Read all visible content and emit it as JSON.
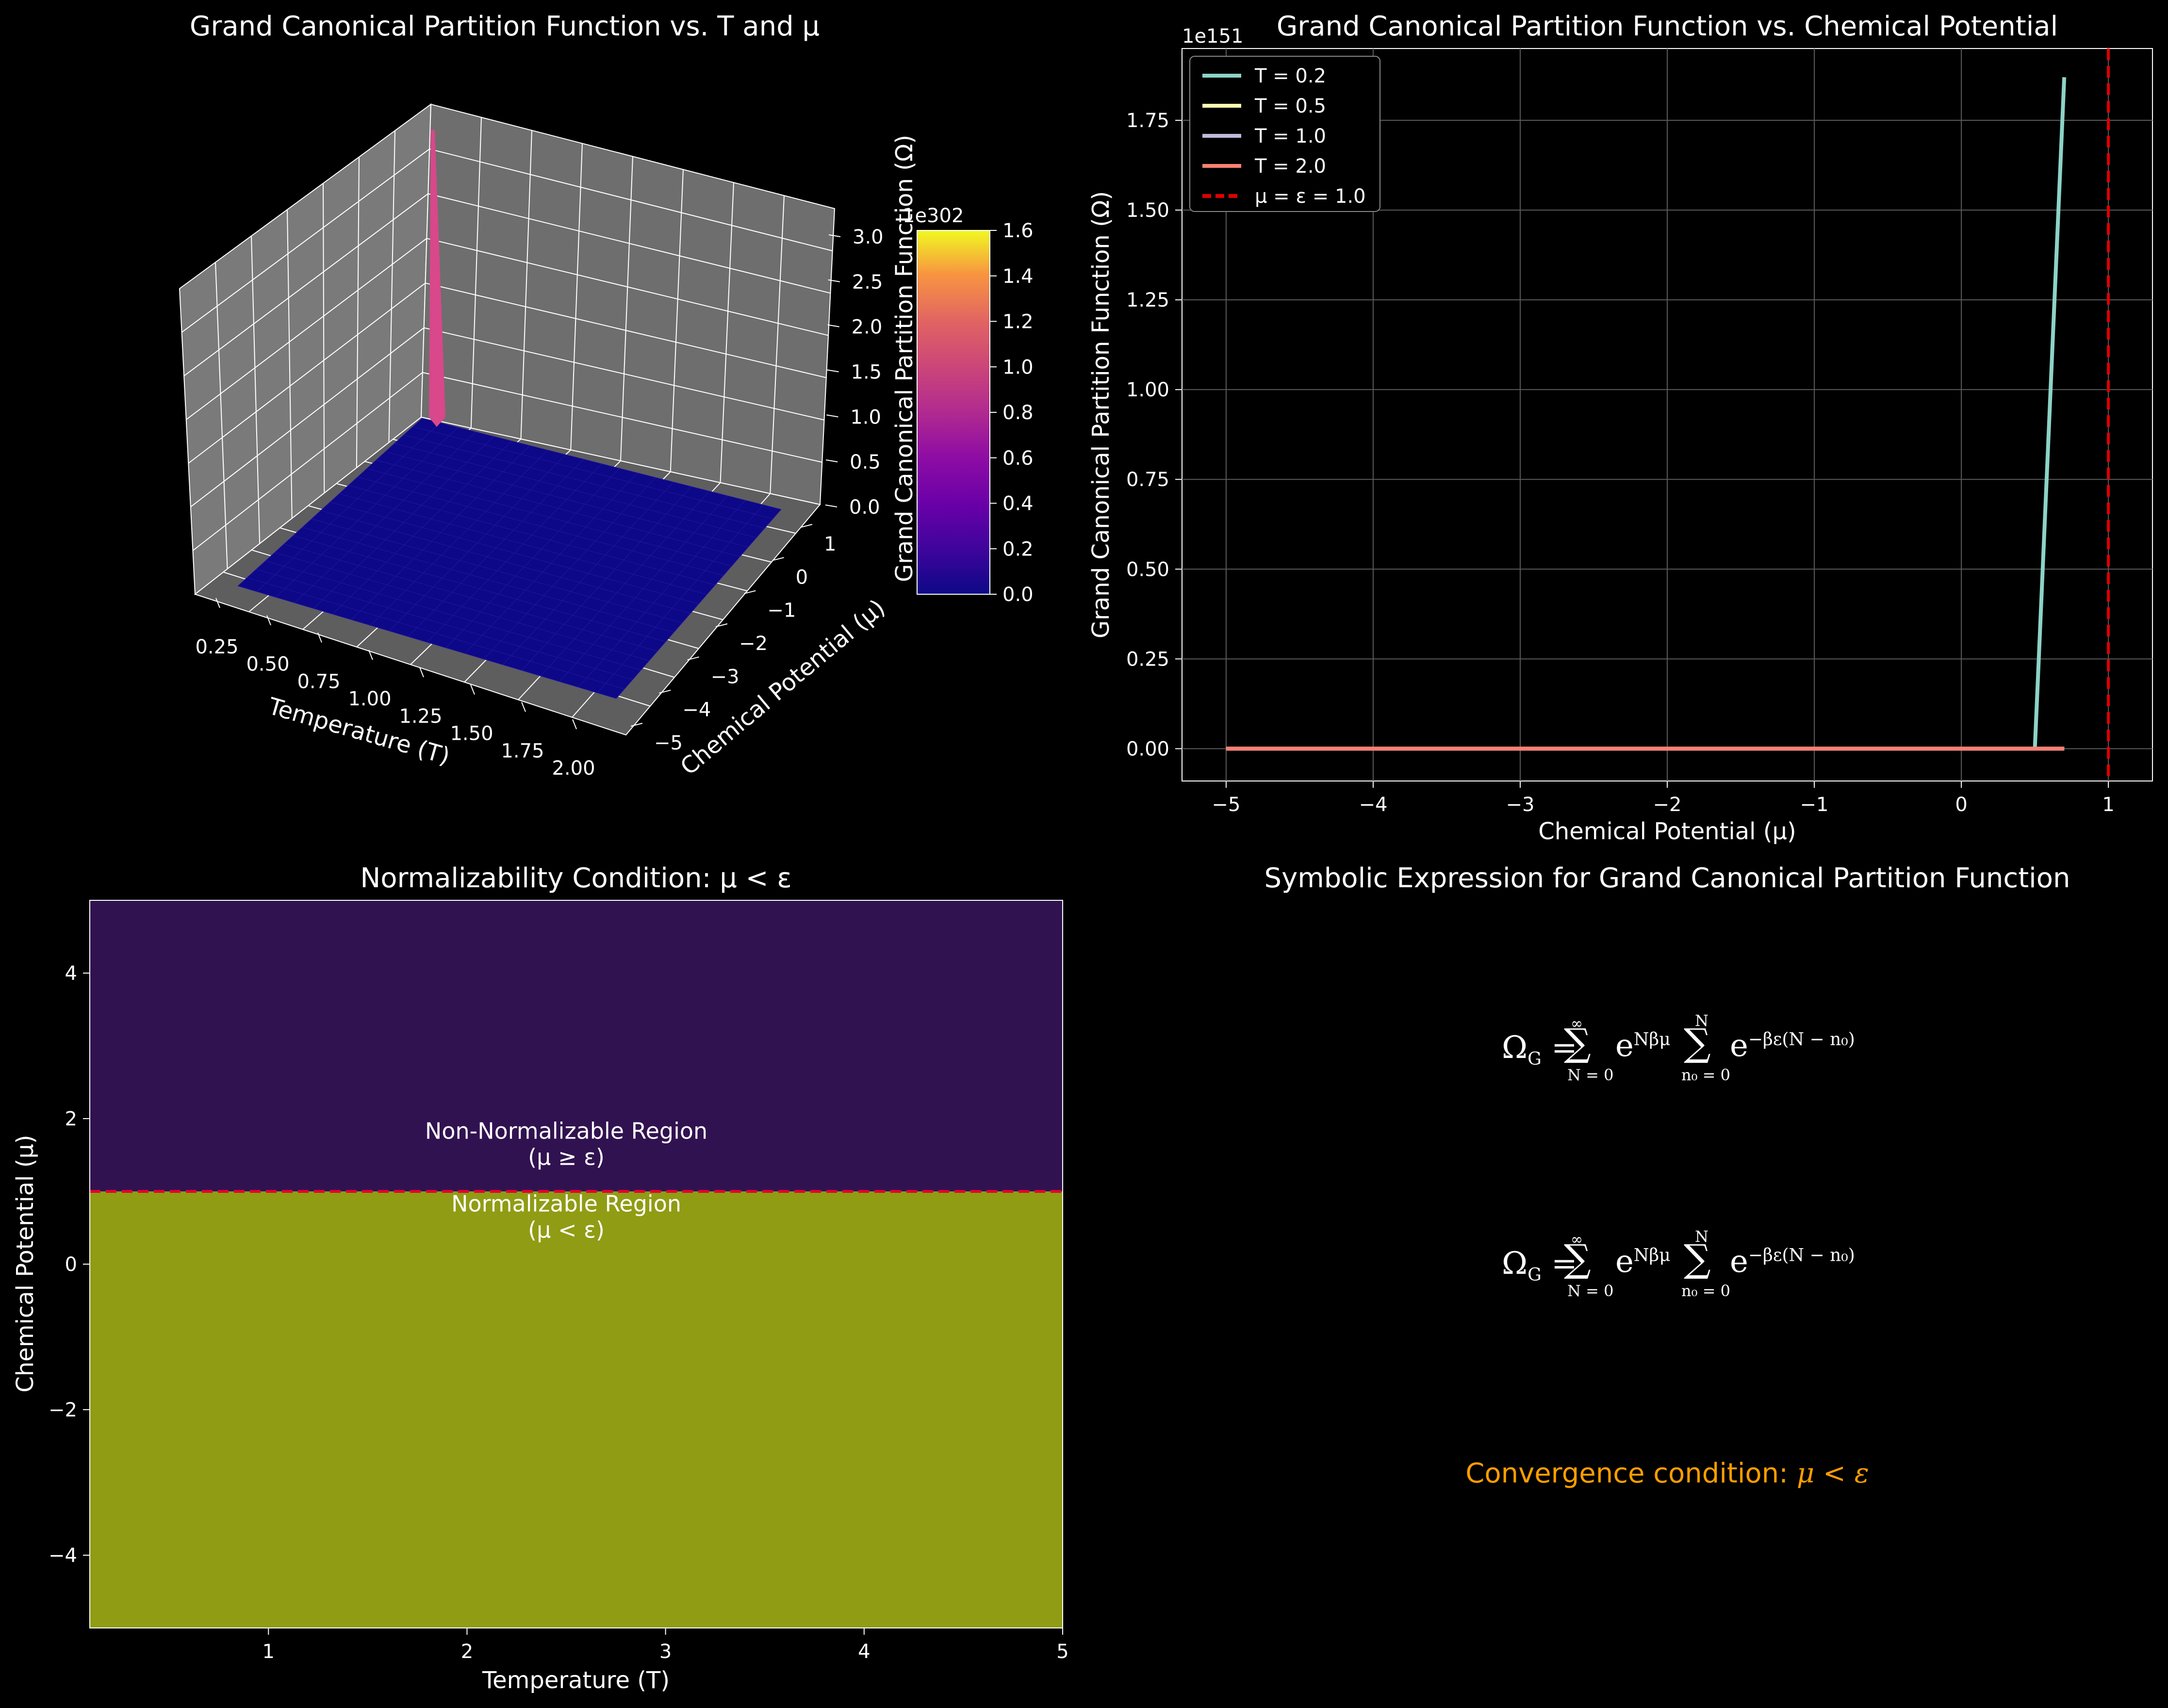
{
  "chart_data": [
    {
      "type": "surface",
      "title": "Grand Canonical Partition Function vs. T and μ",
      "xlabel": "Temperature (T)",
      "ylabel": "Chemical Potential (μ)",
      "zlabel": "Grand Canonical Partition Function (Ω)",
      "x_ticks": [
        "0.25",
        "0.50",
        "0.75",
        "1.00",
        "1.25",
        "1.50",
        "1.75",
        "2.00"
      ],
      "y_ticks": [
        "−5",
        "−4",
        "−3",
        "−2",
        "−1",
        "0",
        "1"
      ],
      "z_ticks": [
        "0.0",
        "0.5",
        "1.0",
        "1.5",
        "2.0",
        "2.5",
        "3.0"
      ],
      "z_offset_label": "1e302",
      "xlim": [
        0.1,
        2.0
      ],
      "ylim": [
        -5,
        1
      ],
      "zlim": [
        0,
        3.2
      ],
      "colormap": "plasma",
      "colorbar": {
        "offset_label": "1e302",
        "ticks": [
          "0.0",
          "0.2",
          "0.4",
          "0.6",
          "0.8",
          "1.0",
          "1.2",
          "1.4",
          "1.6"
        ],
        "range": [
          0,
          1.6
        ]
      },
      "surface_baseline_z": 0,
      "spike": {
        "T": 0.1,
        "mu": 1.0,
        "z": 3.2
      }
    },
    {
      "type": "line",
      "title": "Grand Canonical Partition Function vs. Chemical Potential",
      "xlabel": "Chemical Potential (μ)",
      "ylabel": "Grand Canonical Partition Function (Ω)",
      "y_offset_label": "1e151",
      "xlim": [
        -5.3,
        1.3
      ],
      "ylim": [
        -0.09,
        1.95
      ],
      "x_ticks": [
        -5,
        -4,
        -3,
        -2,
        -1,
        0,
        1
      ],
      "x_tick_labels": [
        "−5",
        "−4",
        "−3",
        "−2",
        "−1",
        "0",
        "1"
      ],
      "y_ticks": [
        0.0,
        0.25,
        0.5,
        0.75,
        1.0,
        1.25,
        1.5,
        1.75
      ],
      "y_tick_labels": [
        "0.00",
        "0.25",
        "0.50",
        "0.75",
        "1.00",
        "1.25",
        "1.50",
        "1.75"
      ],
      "grid": true,
      "legend_position": "top-left",
      "series": [
        {
          "name": "T = 0.2",
          "color": "#8dd3c7",
          "x": [
            -5,
            0.5,
            0.7
          ],
          "y": [
            0,
            0,
            1.87
          ]
        },
        {
          "name": "T = 0.5",
          "color": "#ffffb3",
          "x": [
            -5,
            0.7
          ],
          "y": [
            0,
            0
          ]
        },
        {
          "name": "T = 1.0",
          "color": "#bebada",
          "x": [
            -5,
            0.7
          ],
          "y": [
            0,
            0
          ]
        },
        {
          "name": "T = 2.0",
          "color": "#fa8072",
          "x": [
            -5,
            0.7
          ],
          "y": [
            0,
            0
          ]
        }
      ],
      "vline": {
        "name": "μ = ε = 1.0",
        "x": 1.0,
        "color": "#e00000",
        "style": "dashed"
      }
    },
    {
      "type": "heatmap",
      "title": "Normalizability Condition: μ < ε",
      "xlabel": "Temperature (T)",
      "ylabel": "Chemical Potential (μ)",
      "xlim": [
        0.1,
        5
      ],
      "ylim": [
        -5,
        5
      ],
      "x_ticks": [
        1,
        2,
        3,
        4,
        5
      ],
      "x_tick_labels": [
        "1",
        "2",
        "3",
        "4",
        "5"
      ],
      "y_ticks": [
        -4,
        -2,
        0,
        2,
        4
      ],
      "y_tick_labels": [
        "−4",
        "−2",
        "0",
        "2",
        "4"
      ],
      "boundary_mu": 1.0,
      "regions": [
        {
          "name": "Non-Normalizable Region",
          "condition": "(μ ≥ ε)",
          "color": "#311250",
          "mu_range": [
            1,
            5
          ],
          "label_x": 2.5,
          "label_y": 1.55
        },
        {
          "name": "Normalizable Region",
          "condition": "(μ < ε)",
          "color": "#909c14",
          "mu_range": [
            -5,
            1
          ],
          "label_x": 2.5,
          "label_y": 0.55
        }
      ],
      "boundary_line": {
        "color": "#e00030",
        "style": "dashed"
      }
    }
  ],
  "symbolic_panel": {
    "title": "Symbolic Expression for Grand Canonical Partition Function",
    "equation_1": {
      "lhs": "Ω",
      "lhs_sub": "G",
      "eq": " = ",
      "sum1_top": "∞",
      "sum1_bottom": "N = 0",
      "e1_base": "e",
      "e1_exp": "Nβμ",
      "sum2_top": "N",
      "sum2_bottom": "n₀ = 0",
      "e2_base": "e",
      "e2_exp": "−βε(N − n₀)"
    },
    "equation_2": {
      "lhs": "Ω",
      "lhs_sub": "G",
      "eq": " = ",
      "sum1_top": "∞",
      "sum1_bottom": "N = 0",
      "e1_base": "e",
      "e1_exp": "Nβμ",
      "sum2_top": "N",
      "sum2_bottom": "n₀ = 0",
      "e2_base": "e",
      "e2_exp": "−βε(N − n₀)"
    },
    "convergence_prefix": "Convergence condition: ",
    "convergence_math": "μ < ε",
    "convergence_color": "#ff9e00"
  }
}
